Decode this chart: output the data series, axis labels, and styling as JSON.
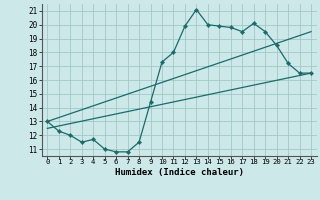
{
  "xlabel": "Humidex (Indice chaleur)",
  "bg_color": "#cce8e8",
  "grid_color": "#a0c8c8",
  "line_color": "#1a6b6b",
  "xlim": [
    -0.5,
    23.5
  ],
  "ylim": [
    10.5,
    21.5
  ],
  "xticks": [
    0,
    1,
    2,
    3,
    4,
    5,
    6,
    7,
    8,
    9,
    10,
    11,
    12,
    13,
    14,
    15,
    16,
    17,
    18,
    19,
    20,
    21,
    22,
    23
  ],
  "yticks": [
    11,
    12,
    13,
    14,
    15,
    16,
    17,
    18,
    19,
    20,
    21
  ],
  "curve_x": [
    0,
    1,
    2,
    3,
    4,
    5,
    6,
    7,
    8,
    9,
    10,
    11,
    12,
    13,
    14,
    15,
    16,
    17,
    18,
    19,
    20,
    21,
    22,
    23
  ],
  "curve_y": [
    13.0,
    12.3,
    12.0,
    11.5,
    11.7,
    11.0,
    10.8,
    10.8,
    11.5,
    14.4,
    17.3,
    18.0,
    19.9,
    21.1,
    20.0,
    19.9,
    19.8,
    19.5,
    20.1,
    19.5,
    18.5,
    17.2,
    16.5,
    16.5
  ],
  "line1_x": [
    0,
    23
  ],
  "line1_y": [
    12.5,
    16.5
  ],
  "line2_x": [
    0,
    23
  ],
  "line2_y": [
    13.0,
    19.5
  ]
}
